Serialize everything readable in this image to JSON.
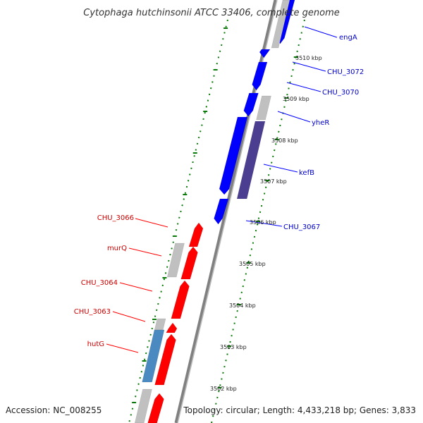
{
  "title": "Cytophaga hutchinsonii ATCC 33406, complete genome",
  "footer": {
    "accession": "Accession: NC_008255",
    "topology": "Topology: circular; Length: 4,433,218 bp; Genes: 3,833"
  },
  "colors": {
    "forward_gene": "#ff0000",
    "reverse_gene": "#0000ff",
    "gray_gene": "#c0c0c0",
    "dark_gene": "#4b3d8f",
    "steel_gene": "#4a8ac0",
    "tick": "#0a7a0a",
    "backbone": "#808080",
    "forward_label": "#cc0000",
    "reverse_label": "#0000cc"
  },
  "ticks": [
    {
      "label": "3502 kbp"
    },
    {
      "label": "3503 kbp"
    },
    {
      "label": "3504 kbp"
    },
    {
      "label": "3505 kbp"
    },
    {
      "label": "3506 kbp"
    },
    {
      "label": "3507 kbp"
    },
    {
      "label": "3508 kbp"
    },
    {
      "label": "3509 kbp"
    },
    {
      "label": "3510 kbp"
    }
  ],
  "reverse_labels": [
    "engA",
    "CHU_3072",
    "CHU_3070",
    "yheR",
    "kefB",
    "CHU_3067"
  ],
  "forward_labels": [
    "CHU_3066",
    "murQ",
    "CHU_3064",
    "CHU_3063",
    "hutG"
  ]
}
